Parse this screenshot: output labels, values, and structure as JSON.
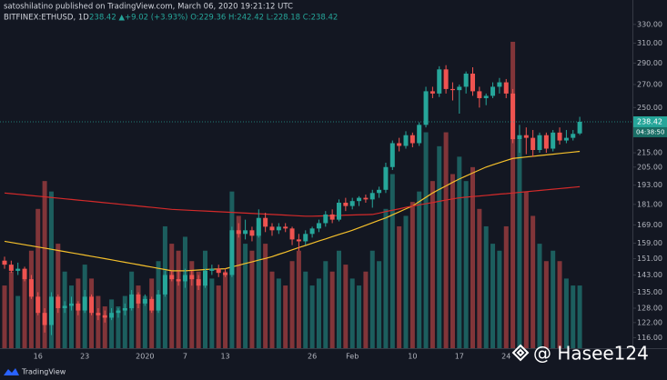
{
  "chart_data": {
    "type": "candlestick",
    "title": "satoshilatino published on TradingView.com, March 06, 2020 19:21:12 UTC",
    "symbol": "BITFINEX:ETHUSD, 1D",
    "quote": "238.42 ▲+9.02 (+3.93%) O:229.36 H:242.42 L:228.18 C:238.42",
    "countdown": "04:38:50",
    "watermark": "@ Hasee124",
    "logo": "TradingView",
    "log_scale": true,
    "grid": false,
    "up_color": "#26a69a",
    "down_color": "#ef5350",
    "ylim": [
      112,
      358
    ],
    "yticks": [
      {
        "value": 330,
        "label": "330.00"
      },
      {
        "value": 310,
        "label": "310.00"
      },
      {
        "value": 290,
        "label": "290.00"
      },
      {
        "value": 270,
        "label": "270.00"
      },
      {
        "value": 250,
        "label": "250.00"
      },
      {
        "value": 215,
        "label": "215.00"
      },
      {
        "value": 205,
        "label": "205.00"
      },
      {
        "value": 193,
        "label": "193.00"
      },
      {
        "value": 181,
        "label": "181.00"
      },
      {
        "value": 169,
        "label": "169.00"
      },
      {
        "value": 159,
        "label": "159.00"
      },
      {
        "value": 151,
        "label": "151.00"
      },
      {
        "value": 143,
        "label": "143.00"
      },
      {
        "value": 135,
        "label": "135.00"
      },
      {
        "value": 128,
        "label": "128.00"
      },
      {
        "value": 122,
        "label": "122.00"
      },
      {
        "value": 116,
        "label": "116.00"
      }
    ],
    "volume_lim": [
      0,
      100
    ],
    "categories": [
      null,
      null,
      null,
      null,
      null,
      "16",
      null,
      null,
      null,
      null,
      null,
      null,
      "23",
      null,
      null,
      null,
      null,
      null,
      null,
      null,
      null,
      "2020",
      null,
      null,
      null,
      null,
      null,
      "7",
      null,
      null,
      null,
      null,
      null,
      "13",
      null,
      null,
      null,
      null,
      null,
      null,
      null,
      null,
      null,
      null,
      null,
      null,
      "26",
      null,
      null,
      null,
      null,
      null,
      "Feb",
      null,
      null,
      null,
      null,
      null,
      null,
      null,
      null,
      "10",
      null,
      null,
      null,
      null,
      null,
      null,
      "17",
      null,
      null,
      null,
      null,
      null,
      null,
      "24",
      null,
      null,
      null,
      null,
      null,
      null,
      null,
      null,
      null,
      null,
      null
    ],
    "open": [
      150,
      148,
      145,
      146,
      141,
      133,
      126,
      121,
      133,
      128,
      129,
      130,
      127,
      133,
      126,
      125,
      124,
      126,
      127,
      128,
      134,
      130,
      132,
      127,
      134,
      143,
      141,
      140,
      143,
      141,
      138,
      145,
      146,
      144,
      143,
      166,
      164,
      166,
      163,
      173,
      168,
      166,
      168,
      167,
      161,
      160,
      164,
      167,
      170,
      175,
      172,
      182,
      180,
      183,
      185,
      184,
      188,
      190,
      205,
      222,
      220,
      228,
      222,
      236,
      264,
      262,
      284,
      266,
      265,
      268,
      280,
      264,
      258,
      260,
      268,
      272,
      262,
      225,
      228,
      226,
      217,
      228,
      218,
      230,
      224,
      226,
      229.36
    ],
    "high": [
      152,
      150,
      149,
      147,
      143,
      135,
      128,
      135,
      134,
      131,
      133,
      131,
      136,
      134,
      128,
      127,
      128,
      128,
      130,
      136,
      135,
      134,
      133,
      136,
      145,
      145,
      145,
      146,
      145,
      143,
      146,
      148,
      148,
      146,
      168,
      170,
      172,
      168,
      178,
      176,
      170,
      170,
      170,
      168,
      164,
      166,
      168,
      172,
      177,
      178,
      184,
      185,
      185,
      186,
      187,
      190,
      192,
      208,
      224,
      226,
      231,
      230,
      238,
      268,
      268,
      287,
      288,
      272,
      270,
      282,
      286,
      268,
      262,
      272,
      276,
      275,
      266,
      236,
      234,
      232,
      230,
      230,
      232,
      234,
      232,
      232,
      242.42
    ],
    "low": [
      146,
      144,
      143,
      140,
      132,
      125,
      118,
      117,
      126,
      126,
      127,
      125,
      126,
      125,
      123,
      122,
      123,
      124,
      125,
      127,
      128,
      129,
      126,
      126,
      133,
      140,
      138,
      137,
      138,
      136,
      137,
      143,
      142,
      142,
      142,
      162,
      161,
      160,
      162,
      165,
      163,
      164,
      165,
      158,
      155,
      158,
      162,
      165,
      168,
      170,
      171,
      177,
      178,
      180,
      182,
      179,
      185,
      188,
      203,
      216,
      218,
      219,
      220,
      234,
      258,
      259,
      262,
      256,
      245,
      262,
      260,
      250,
      252,
      258,
      262,
      258,
      222,
      215,
      214,
      212,
      215,
      215,
      216,
      221,
      222,
      224,
      228.18
    ],
    "close": [
      148,
      145,
      146,
      141,
      133,
      126,
      121,
      133,
      128,
      129,
      130,
      127,
      133,
      126,
      125,
      124,
      126,
      127,
      128,
      134,
      130,
      132,
      127,
      134,
      143,
      141,
      140,
      143,
      141,
      138,
      145,
      146,
      144,
      143,
      166,
      164,
      166,
      163,
      173,
      168,
      166,
      168,
      167,
      161,
      160,
      164,
      167,
      170,
      175,
      172,
      182,
      180,
      183,
      185,
      184,
      188,
      190,
      205,
      222,
      220,
      228,
      222,
      236,
      264,
      262,
      284,
      266,
      265,
      268,
      280,
      264,
      258,
      260,
      268,
      272,
      262,
      225,
      228,
      226,
      217,
      228,
      218,
      230,
      224,
      226,
      229,
      238.42
    ],
    "volume": [
      18,
      22,
      15,
      20,
      28,
      40,
      48,
      45,
      30,
      22,
      18,
      20,
      24,
      20,
      15,
      12,
      14,
      12,
      15,
      22,
      18,
      15,
      20,
      25,
      35,
      30,
      28,
      32,
      25,
      22,
      28,
      20,
      18,
      22,
      45,
      38,
      30,
      28,
      35,
      30,
      22,
      20,
      18,
      25,
      28,
      22,
      18,
      20,
      25,
      22,
      28,
      24,
      20,
      18,
      22,
      28,
      25,
      40,
      50,
      35,
      38,
      42,
      45,
      62,
      48,
      58,
      62,
      50,
      55,
      48,
      52,
      40,
      35,
      30,
      28,
      35,
      88,
      60,
      45,
      38,
      30,
      25,
      28,
      25,
      20,
      18,
      18
    ],
    "lines": [
      {
        "color": "#f5c02b",
        "values": [
          160,
          159.4,
          158.8,
          158.2,
          157.6,
          157,
          156.4,
          155.8,
          155.2,
          154.6,
          154,
          153.4,
          152.8,
          152.2,
          151.6,
          151,
          150.4,
          149.8,
          149.2,
          148.6,
          148,
          147.4,
          146.8,
          146.2,
          145.6,
          145,
          145,
          145,
          145.2,
          145.4,
          145.6,
          145.8,
          145.9,
          146,
          146.9,
          147.7,
          148.6,
          149.4,
          150.3,
          151.1,
          152,
          153.2,
          154.3,
          155.5,
          156.7,
          157.8,
          159,
          160.2,
          161.3,
          162.5,
          163.7,
          164.8,
          166,
          167.4,
          168.8,
          170.2,
          171.6,
          173,
          174.8,
          176.5,
          178.3,
          180,
          182.7,
          185.3,
          188,
          190.3,
          192.5,
          194.8,
          197,
          199,
          201,
          203,
          205,
          206.5,
          208,
          209.5,
          211,
          211.5,
          212,
          212.5,
          213,
          213.5,
          214,
          214.5,
          215,
          215.5,
          216
        ]
      },
      {
        "color": "#d42a2a",
        "values": [
          188,
          187.6,
          187.2,
          186.8,
          186.4,
          186,
          185.6,
          185.2,
          184.8,
          184.4,
          184,
          183.6,
          183.2,
          182.8,
          182.4,
          182,
          181.6,
          181.2,
          180.8,
          180.4,
          180,
          179.6,
          179.2,
          178.8,
          178.4,
          178,
          177.8,
          177.6,
          177.4,
          177.2,
          177,
          176.8,
          176.6,
          176.4,
          176.2,
          176,
          175.8,
          175.6,
          175.4,
          175.2,
          175,
          174.8,
          174.6,
          174.4,
          174.2,
          174,
          174,
          174.1,
          174.2,
          174.3,
          174.4,
          174.6,
          174.7,
          174.8,
          174.9,
          175,
          175.8,
          176.7,
          177.5,
          178.3,
          179.2,
          180,
          180.7,
          181.4,
          182.1,
          182.9,
          183.6,
          184.3,
          185,
          185.4,
          185.8,
          186.1,
          186.5,
          186.9,
          187.3,
          187.6,
          188,
          188.4,
          188.8,
          189.2,
          189.6,
          190,
          190.4,
          190.8,
          191.2,
          191.6,
          192
        ]
      }
    ]
  }
}
